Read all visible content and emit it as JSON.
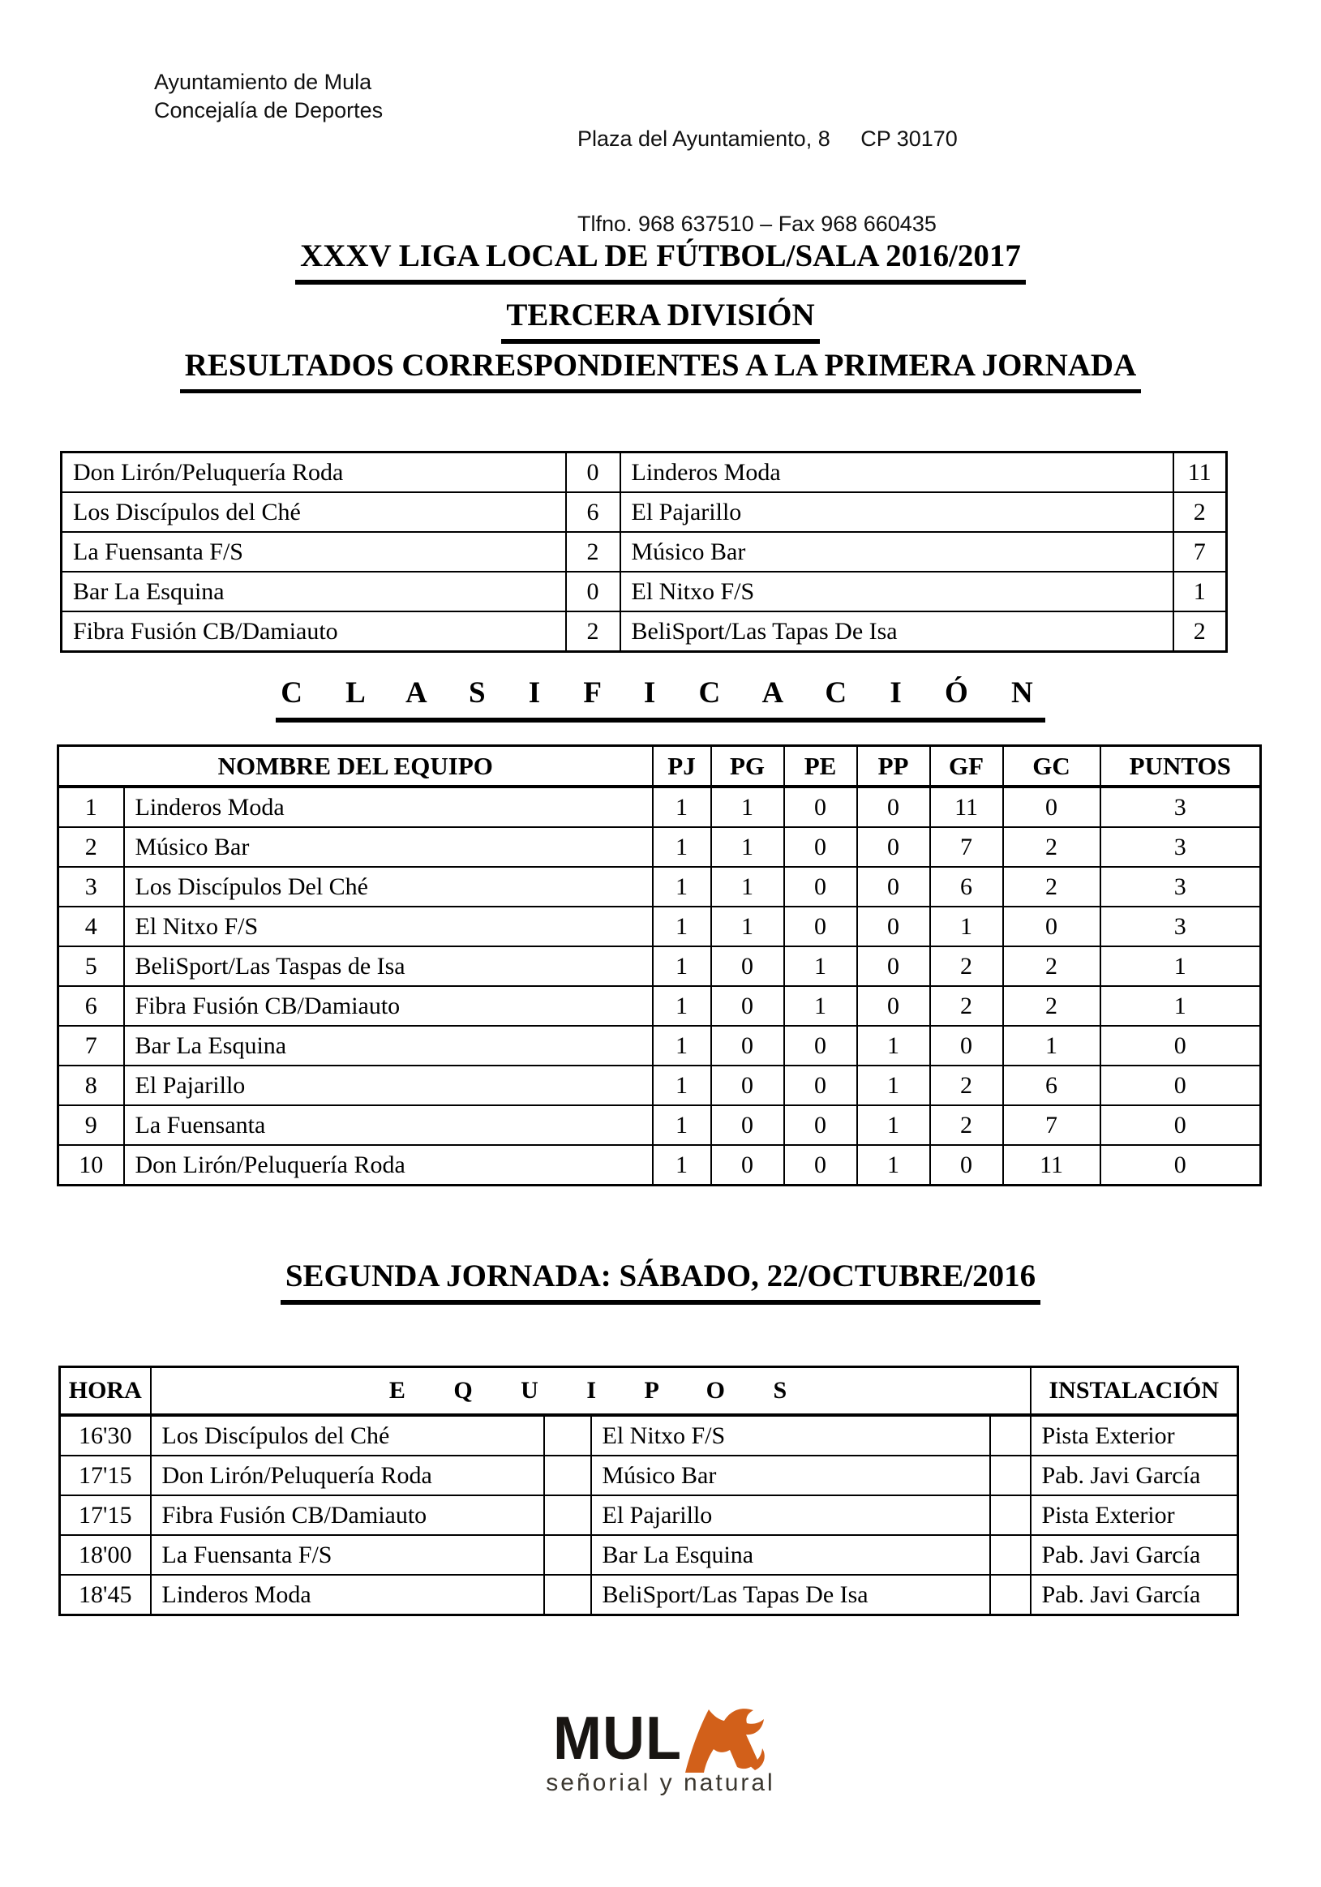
{
  "header": {
    "org_line1": "Ayuntamiento de Mula",
    "org_line2": "Concejalía de Deportes",
    "address_line1": "Plaza del Ayuntamiento, 8     CP 30170",
    "address_line2": "Tlfno. 968 637510 – Fax 968 660435"
  },
  "titles": {
    "main": "XXXV LIGA LOCAL DE FÚTBOL/SALA 2016/2017",
    "division": "TERCERA DIVISIÓN",
    "results_heading": "RESULTADOS CORRESPONDIENTES A LA PRIMERA JORNADA"
  },
  "results_table": {
    "rows": [
      {
        "home": "Don Lirón/Peluquería Roda",
        "home_score": "0",
        "away": "Linderos Moda",
        "away_score": "11"
      },
      {
        "home": "Los Discípulos del Ché",
        "home_score": "6",
        "away": "El Pajarillo",
        "away_score": "2"
      },
      {
        "home": "La Fuensanta F/S",
        "home_score": "2",
        "away": "Músico Bar",
        "away_score": "7"
      },
      {
        "home": "Bar La Esquina",
        "home_score": "0",
        "away": "El Nitxo F/S",
        "away_score": "1"
      },
      {
        "home": "Fibra Fusión CB/Damiauto",
        "home_score": "2",
        "away": "BeliSport/Las Tapas De Isa",
        "away_score": "2"
      }
    ]
  },
  "classification": {
    "heading": "C L A S I F I C A C I Ó N",
    "columns": {
      "name": "NOMBRE DEL EQUIPO",
      "pj": "PJ",
      "pg": "PG",
      "pe": "PE",
      "pp": "PP",
      "gf": "GF",
      "gc": "GC",
      "puntos": "PUNTOS"
    },
    "rows": [
      {
        "pos": "1",
        "team": "Linderos Moda",
        "pj": "1",
        "pg": "1",
        "pe": "0",
        "pp": "0",
        "gf": "11",
        "gc": "0",
        "puntos": "3"
      },
      {
        "pos": "2",
        "team": "Músico Bar",
        "pj": "1",
        "pg": "1",
        "pe": "0",
        "pp": "0",
        "gf": "7",
        "gc": "2",
        "puntos": "3"
      },
      {
        "pos": "3",
        "team": "Los Discípulos Del Ché",
        "pj": "1",
        "pg": "1",
        "pe": "0",
        "pp": "0",
        "gf": "6",
        "gc": "2",
        "puntos": "3"
      },
      {
        "pos": "4",
        "team": "El Nitxo F/S",
        "pj": "1",
        "pg": "1",
        "pe": "0",
        "pp": "0",
        "gf": "1",
        "gc": "0",
        "puntos": "3"
      },
      {
        "pos": "5",
        "team": "BeliSport/Las Taspas de Isa",
        "pj": "1",
        "pg": "0",
        "pe": "1",
        "pp": "0",
        "gf": "2",
        "gc": "2",
        "puntos": "1"
      },
      {
        "pos": "6",
        "team": "Fibra Fusión CB/Damiauto",
        "pj": "1",
        "pg": "0",
        "pe": "1",
        "pp": "0",
        "gf": "2",
        "gc": "2",
        "puntos": "1"
      },
      {
        "pos": "7",
        "team": "Bar La Esquina",
        "pj": "1",
        "pg": "0",
        "pe": "0",
        "pp": "1",
        "gf": "0",
        "gc": "1",
        "puntos": "0"
      },
      {
        "pos": "8",
        "team": "El Pajarillo",
        "pj": "1",
        "pg": "0",
        "pe": "0",
        "pp": "1",
        "gf": "2",
        "gc": "6",
        "puntos": "0"
      },
      {
        "pos": "9",
        "team": "La Fuensanta",
        "pj": "1",
        "pg": "0",
        "pe": "0",
        "pp": "1",
        "gf": "2",
        "gc": "7",
        "puntos": "0"
      },
      {
        "pos": "10",
        "team": "Don Lirón/Peluquería Roda",
        "pj": "1",
        "pg": "0",
        "pe": "0",
        "pp": "1",
        "gf": "0",
        "gc": "11",
        "puntos": "0"
      }
    ]
  },
  "second_round": {
    "heading": "SEGUNDA JORNADA: SÁBADO, 22/OCTUBRE/2016",
    "columns": {
      "hora": "HORA",
      "equipos": "E Q U I P O S",
      "instalacion": "INSTALACIÓN"
    },
    "rows": [
      {
        "hora": "16'30",
        "team1": "Los Discípulos del Ché",
        "team2": "El Nitxo F/S",
        "instalacion": "Pista Exterior"
      },
      {
        "hora": "17'15",
        "team1": "Don Lirón/Peluquería Roda",
        "team2": "Músico Bar",
        "instalacion": "Pab. Javi García"
      },
      {
        "hora": "17'15",
        "team1": "Fibra Fusión CB/Damiauto",
        "team2": "El Pajarillo",
        "instalacion": "Pista Exterior"
      },
      {
        "hora": "18'00",
        "team1": "La Fuensanta F/S",
        "team2": "Bar La Esquina",
        "instalacion": "Pab. Javi García"
      },
      {
        "hora": "18'45",
        "team1": "Linderos Moda",
        "team2": "BeliSport/Las Tapas De Isa",
        "instalacion": "Pab. Javi García"
      }
    ]
  },
  "footer": {
    "logo_text": "MUL",
    "tagline": "señorial y natural",
    "logo_orange": "#d2601a"
  }
}
